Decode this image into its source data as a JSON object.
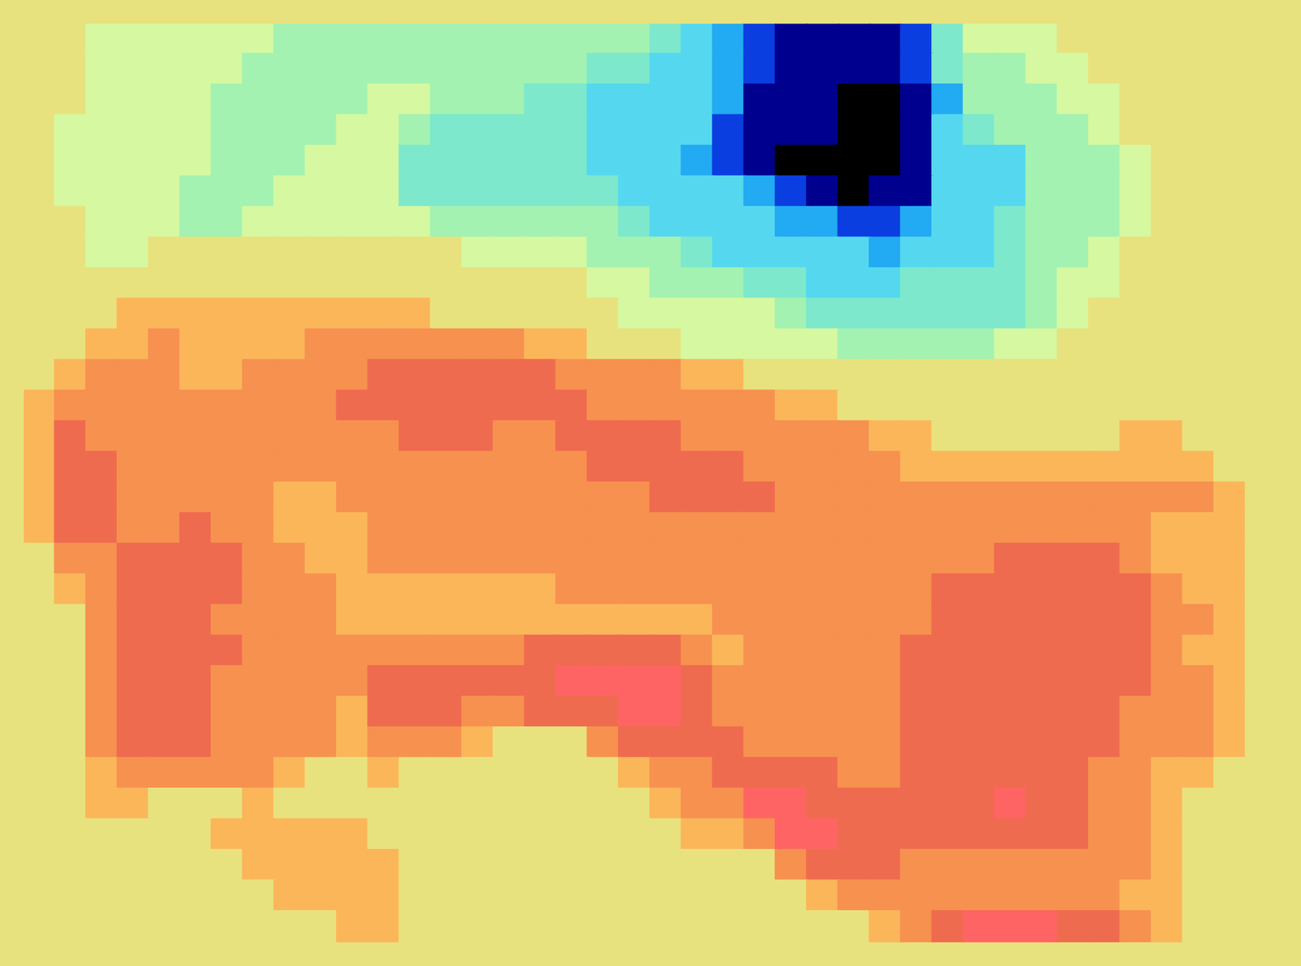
{
  "chart_data": {
    "type": "heatmap",
    "tick_labels": false,
    "xlim": [
      0,
      40
    ],
    "ylim": [
      0,
      30
    ],
    "zlim": [
      0,
      12
    ],
    "z": [
      [
        8,
        8,
        7,
        7,
        7,
        7,
        7,
        7,
        6,
        6,
        6,
        6,
        6,
        6,
        6,
        6,
        6,
        6,
        6,
        6,
        5,
        4,
        3,
        2,
        1,
        1,
        1,
        1,
        2,
        5,
        7,
        7,
        7,
        8,
        8,
        8,
        8,
        8,
        8,
        8
      ],
      [
        8,
        8,
        7,
        7,
        7,
        7,
        7,
        6,
        6,
        6,
        6,
        6,
        6,
        6,
        6,
        6,
        6,
        6,
        5,
        5,
        4,
        4,
        3,
        2,
        1,
        1,
        1,
        1,
        2,
        5,
        6,
        6,
        7,
        7,
        8,
        8,
        8,
        8,
        8,
        8
      ],
      [
        8,
        8,
        7,
        7,
        7,
        7,
        6,
        6,
        6,
        6,
        6,
        7,
        7,
        6,
        6,
        6,
        5,
        5,
        4,
        4,
        4,
        4,
        3,
        1,
        1,
        1,
        0,
        0,
        1,
        3,
        6,
        6,
        6,
        7,
        7,
        8,
        8,
        8,
        8,
        8
      ],
      [
        8,
        7,
        7,
        7,
        7,
        7,
        6,
        6,
        6,
        6,
        7,
        7,
        6,
        5,
        5,
        5,
        5,
        5,
        4,
        4,
        4,
        4,
        2,
        1,
        1,
        1,
        0,
        0,
        1,
        4,
        5,
        6,
        6,
        6,
        7,
        8,
        8,
        8,
        8,
        8
      ],
      [
        8,
        7,
        7,
        7,
        7,
        7,
        6,
        6,
        6,
        7,
        7,
        7,
        5,
        5,
        5,
        5,
        5,
        5,
        4,
        4,
        4,
        3,
        2,
        1,
        0,
        0,
        0,
        0,
        1,
        4,
        4,
        4,
        6,
        6,
        6,
        7,
        8,
        8,
        8,
        8
      ],
      [
        8,
        7,
        7,
        7,
        7,
        6,
        6,
        6,
        7,
        7,
        7,
        7,
        5,
        5,
        5,
        5,
        5,
        5,
        5,
        4,
        4,
        4,
        4,
        3,
        2,
        1,
        0,
        1,
        1,
        4,
        4,
        4,
        6,
        6,
        6,
        7,
        8,
        8,
        8,
        8
      ],
      [
        8,
        8,
        7,
        7,
        7,
        6,
        6,
        7,
        7,
        7,
        7,
        7,
        7,
        6,
        6,
        6,
        6,
        6,
        6,
        5,
        4,
        4,
        4,
        4,
        3,
        3,
        2,
        2,
        3,
        4,
        4,
        5,
        6,
        6,
        6,
        7,
        8,
        8,
        8,
        8
      ],
      [
        8,
        8,
        7,
        7,
        8,
        8,
        8,
        8,
        8,
        8,
        8,
        8,
        8,
        8,
        7,
        7,
        7,
        7,
        6,
        6,
        6,
        5,
        4,
        4,
        4,
        4,
        4,
        3,
        4,
        4,
        4,
        5,
        6,
        6,
        7,
        8,
        8,
        8,
        8,
        8
      ],
      [
        8,
        8,
        8,
        8,
        8,
        8,
        8,
        8,
        8,
        8,
        8,
        8,
        8,
        8,
        8,
        8,
        8,
        8,
        7,
        7,
        6,
        6,
        6,
        5,
        5,
        4,
        4,
        4,
        5,
        5,
        5,
        5,
        6,
        7,
        7,
        8,
        8,
        8,
        8,
        8
      ],
      [
        8,
        8,
        8,
        9,
        9,
        9,
        9,
        9,
        9,
        9,
        9,
        9,
        9,
        8,
        8,
        8,
        8,
        8,
        8,
        7,
        7,
        7,
        7,
        7,
        6,
        5,
        5,
        5,
        5,
        5,
        5,
        5,
        6,
        7,
        8,
        8,
        8,
        8,
        8,
        8
      ],
      [
        8,
        8,
        9,
        9,
        10,
        9,
        9,
        9,
        9,
        10,
        10,
        10,
        10,
        10,
        10,
        10,
        9,
        9,
        8,
        8,
        8,
        7,
        7,
        7,
        7,
        7,
        6,
        6,
        6,
        6,
        6,
        7,
        7,
        8,
        8,
        8,
        8,
        8,
        8,
        8
      ],
      [
        8,
        9,
        10,
        10,
        10,
        9,
        9,
        10,
        10,
        10,
        10,
        11,
        11,
        11,
        11,
        11,
        11,
        10,
        10,
        10,
        10,
        9,
        9,
        8,
        8,
        8,
        8,
        8,
        8,
        8,
        8,
        8,
        8,
        8,
        8,
        8,
        8,
        8,
        8,
        8
      ],
      [
        9,
        10,
        10,
        10,
        10,
        10,
        10,
        10,
        10,
        10,
        11,
        11,
        11,
        11,
        11,
        11,
        11,
        11,
        10,
        10,
        10,
        10,
        10,
        10,
        9,
        9,
        8,
        8,
        8,
        8,
        8,
        8,
        8,
        8,
        8,
        8,
        8,
        8,
        8,
        8
      ],
      [
        9,
        11,
        10,
        10,
        10,
        10,
        10,
        10,
        10,
        10,
        10,
        10,
        11,
        11,
        11,
        10,
        10,
        11,
        11,
        11,
        11,
        10,
        10,
        10,
        10,
        10,
        10,
        9,
        9,
        8,
        8,
        8,
        8,
        8,
        8,
        9,
        9,
        8,
        8,
        8
      ],
      [
        9,
        11,
        11,
        10,
        10,
        10,
        10,
        10,
        10,
        10,
        10,
        10,
        10,
        10,
        10,
        10,
        10,
        10,
        11,
        11,
        11,
        11,
        11,
        10,
        10,
        10,
        10,
        10,
        9,
        9,
        9,
        9,
        9,
        9,
        9,
        9,
        9,
        9,
        8,
        8
      ],
      [
        9,
        11,
        11,
        10,
        10,
        10,
        10,
        10,
        9,
        9,
        10,
        10,
        10,
        10,
        10,
        10,
        10,
        10,
        10,
        10,
        11,
        11,
        11,
        11,
        10,
        10,
        10,
        10,
        10,
        10,
        10,
        10,
        10,
        10,
        10,
        10,
        10,
        10,
        9,
        8
      ],
      [
        9,
        11,
        11,
        10,
        10,
        11,
        10,
        10,
        9,
        9,
        9,
        10,
        10,
        10,
        10,
        10,
        10,
        10,
        10,
        10,
        10,
        10,
        10,
        10,
        10,
        10,
        10,
        10,
        10,
        10,
        10,
        10,
        10,
        10,
        10,
        10,
        9,
        9,
        9,
        8
      ],
      [
        8,
        10,
        10,
        11,
        11,
        11,
        11,
        10,
        10,
        9,
        9,
        10,
        10,
        10,
        10,
        10,
        10,
        10,
        10,
        10,
        10,
        10,
        10,
        10,
        10,
        10,
        10,
        10,
        10,
        10,
        10,
        11,
        11,
        11,
        11,
        10,
        9,
        9,
        9,
        8
      ],
      [
        8,
        9,
        10,
        11,
        11,
        11,
        11,
        10,
        10,
        10,
        9,
        9,
        9,
        9,
        9,
        9,
        9,
        10,
        10,
        10,
        10,
        10,
        10,
        10,
        10,
        10,
        10,
        10,
        10,
        11,
        11,
        11,
        11,
        11,
        11,
        11,
        10,
        9,
        9,
        8
      ],
      [
        8,
        8,
        10,
        11,
        11,
        11,
        10,
        10,
        10,
        10,
        9,
        9,
        9,
        9,
        9,
        9,
        9,
        9,
        9,
        9,
        9,
        9,
        10,
        10,
        10,
        10,
        10,
        10,
        10,
        11,
        11,
        11,
        11,
        11,
        11,
        11,
        10,
        10,
        9,
        8
      ],
      [
        8,
        8,
        10,
        11,
        11,
        11,
        11,
        10,
        10,
        10,
        10,
        10,
        10,
        10,
        10,
        10,
        11,
        11,
        11,
        11,
        11,
        10,
        9,
        10,
        10,
        10,
        10,
        10,
        11,
        11,
        11,
        11,
        11,
        11,
        11,
        11,
        10,
        9,
        9,
        8
      ],
      [
        8,
        8,
        10,
        11,
        11,
        11,
        10,
        10,
        10,
        10,
        10,
        11,
        11,
        11,
        11,
        11,
        11,
        12,
        12,
        12,
        12,
        11,
        10,
        10,
        10,
        10,
        10,
        10,
        11,
        11,
        11,
        11,
        11,
        11,
        11,
        11,
        10,
        10,
        9,
        8
      ],
      [
        8,
        8,
        10,
        11,
        11,
        11,
        10,
        10,
        10,
        10,
        9,
        11,
        11,
        11,
        10,
        10,
        11,
        11,
        11,
        12,
        12,
        11,
        10,
        10,
        10,
        10,
        10,
        10,
        11,
        11,
        11,
        11,
        11,
        11,
        11,
        10,
        10,
        10,
        9,
        8
      ],
      [
        8,
        8,
        10,
        11,
        11,
        11,
        10,
        10,
        10,
        10,
        9,
        10,
        10,
        10,
        9,
        8,
        8,
        8,
        10,
        11,
        11,
        11,
        11,
        10,
        10,
        10,
        10,
        10,
        11,
        11,
        11,
        11,
        11,
        11,
        11,
        10,
        10,
        10,
        9,
        8
      ],
      [
        8,
        8,
        9,
        10,
        10,
        10,
        10,
        10,
        9,
        8,
        8,
        9,
        8,
        8,
        8,
        8,
        8,
        8,
        8,
        9,
        10,
        10,
        11,
        11,
        11,
        11,
        10,
        10,
        11,
        11,
        11,
        11,
        11,
        11,
        10,
        10,
        9,
        9,
        8,
        8
      ],
      [
        8,
        8,
        9,
        9,
        8,
        8,
        8,
        9,
        8,
        8,
        8,
        8,
        8,
        8,
        8,
        8,
        8,
        8,
        8,
        8,
        9,
        10,
        10,
        12,
        12,
        11,
        11,
        11,
        11,
        11,
        11,
        12,
        11,
        11,
        10,
        10,
        9,
        8,
        8,
        8
      ],
      [
        8,
        8,
        8,
        8,
        8,
        8,
        9,
        9,
        9,
        9,
        9,
        8,
        8,
        8,
        8,
        8,
        8,
        8,
        8,
        8,
        8,
        9,
        9,
        10,
        12,
        12,
        11,
        11,
        11,
        11,
        11,
        11,
        11,
        11,
        10,
        10,
        9,
        8,
        8,
        8
      ],
      [
        8,
        8,
        8,
        8,
        8,
        8,
        8,
        9,
        9,
        9,
        9,
        9,
        8,
        8,
        8,
        8,
        8,
        8,
        8,
        8,
        8,
        8,
        8,
        8,
        10,
        11,
        11,
        11,
        10,
        10,
        10,
        10,
        10,
        10,
        10,
        10,
        9,
        8,
        8,
        8
      ],
      [
        8,
        8,
        8,
        8,
        8,
        8,
        8,
        8,
        9,
        9,
        9,
        9,
        8,
        8,
        8,
        8,
        8,
        8,
        8,
        8,
        8,
        8,
        8,
        8,
        8,
        9,
        10,
        10,
        10,
        10,
        10,
        10,
        10,
        10,
        10,
        9,
        9,
        8,
        8,
        8
      ],
      [
        8,
        8,
        8,
        8,
        8,
        8,
        8,
        8,
        8,
        8,
        9,
        9,
        8,
        8,
        8,
        8,
        8,
        8,
        8,
        8,
        8,
        8,
        8,
        8,
        8,
        8,
        8,
        9,
        10,
        11,
        12,
        12,
        12,
        11,
        11,
        10,
        9,
        8,
        8,
        8
      ]
    ]
  }
}
